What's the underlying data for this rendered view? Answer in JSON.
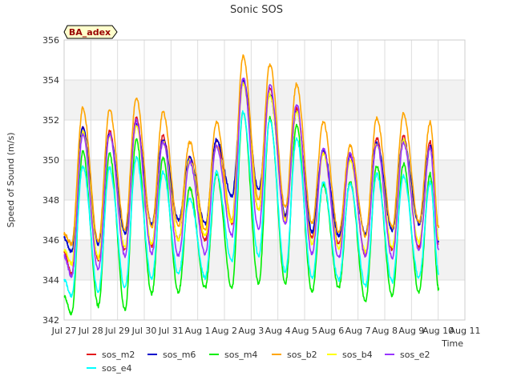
{
  "chart_data": {
    "type": "line",
    "title": "Sonic SOS",
    "xlabel": "Time",
    "ylabel": "Speed of Sound (m/s)",
    "ylim": [
      342,
      356
    ],
    "y_ticks": [
      342,
      344,
      346,
      348,
      350,
      352,
      354,
      356
    ],
    "xlim": [
      0,
      15
    ],
    "x_ticks": [
      {
        "pos": 0,
        "label": "Jul 27"
      },
      {
        "pos": 1,
        "label": "Jul 28"
      },
      {
        "pos": 2,
        "label": "Jul 29"
      },
      {
        "pos": 3,
        "label": "Jul 30"
      },
      {
        "pos": 4,
        "label": "Jul 31"
      },
      {
        "pos": 5,
        "label": "Aug 1"
      },
      {
        "pos": 6,
        "label": "Aug 2"
      },
      {
        "pos": 7,
        "label": "Aug 3"
      },
      {
        "pos": 8,
        "label": "Aug 4"
      },
      {
        "pos": 9,
        "label": "Aug 5"
      },
      {
        "pos": 10,
        "label": "Aug 6"
      },
      {
        "pos": 11,
        "label": "Aug 7"
      },
      {
        "pos": 12,
        "label": "Aug 8"
      },
      {
        "pos": 13,
        "label": "Aug 9"
      },
      {
        "pos": 14,
        "label": "Aug 10"
      },
      {
        "pos": 15,
        "label": "Aug 11"
      }
    ],
    "grid": true,
    "legend_position": "bottom",
    "annotation": {
      "text": "BA_adex",
      "border_color": "#000000",
      "fill_color": "#ffffcc",
      "text_color": "#990000"
    },
    "day_maxima_minima_note": "values per series listed as daily [max, min] pairs",
    "series": [
      {
        "name": "sos_m2",
        "color": "#e41a1c",
        "first": 345.4,
        "daily_max": [
          351.7,
          351.5,
          352.1,
          351.2,
          350.2,
          351.0,
          354.0,
          353.6,
          352.6,
          350.5,
          350.2,
          351.1,
          351.2,
          350.9
        ],
        "daily_min": [
          344.3,
          345.0,
          345.5,
          345.7,
          346.0,
          346.0,
          346.8,
          347.5,
          347.2,
          346.1,
          345.8,
          345.2,
          345.5,
          345.6
        ],
        "last": 345.8
      },
      {
        "name": "sos_m6",
        "color": "#0000cc",
        "first": 346.1,
        "daily_max": [
          351.6,
          351.3,
          351.8,
          351.0,
          350.1,
          351.0,
          354.0,
          353.3,
          352.4,
          350.5,
          350.2,
          350.9,
          351.0,
          350.7
        ],
        "daily_min": [
          345.4,
          345.8,
          346.3,
          346.8,
          347.0,
          346.8,
          348.2,
          348.5,
          347.2,
          346.4,
          346.2,
          346.3,
          346.5,
          346.8
        ],
        "last": 345.9
      },
      {
        "name": "sos_m4",
        "color": "#00ee00",
        "first": 343.2,
        "daily_max": [
          350.4,
          350.3,
          351.0,
          350.1,
          348.6,
          349.3,
          352.4,
          352.1,
          351.7,
          348.8,
          348.9,
          349.7,
          349.8,
          349.3
        ],
        "daily_min": [
          342.3,
          342.7,
          342.5,
          343.3,
          343.4,
          343.6,
          343.6,
          343.8,
          343.8,
          343.4,
          343.6,
          342.9,
          343.2,
          343.4
        ],
        "last": 343.5
      },
      {
        "name": "sos_b2",
        "color": "#ffa500",
        "first": 346.3,
        "daily_max": [
          352.6,
          352.5,
          353.1,
          352.4,
          350.9,
          351.9,
          355.2,
          354.8,
          353.8,
          351.9,
          350.7,
          352.1,
          352.3,
          351.9
        ],
        "daily_min": [
          345.8,
          345.9,
          346.5,
          346.6,
          346.7,
          346.5,
          347.0,
          348.0,
          347.6,
          346.8,
          346.4,
          346.2,
          346.6,
          346.9
        ],
        "last": 346.6
      },
      {
        "name": "sos_b4",
        "color": "#ffff00",
        "first": 345.5,
        "daily_max": [
          351.4,
          351.2,
          351.7,
          350.9,
          350.0,
          350.7,
          353.8,
          353.3,
          352.4,
          350.3,
          350.0,
          350.8,
          351.0,
          350.6
        ],
        "daily_min": [
          344.8,
          345.1,
          345.6,
          345.8,
          346.0,
          346.2,
          346.9,
          347.5,
          347.0,
          345.8,
          345.6,
          345.4,
          345.6,
          345.9
        ],
        "last": 346.0
      },
      {
        "name": "sos_e2",
        "color": "#9933ff",
        "first": 345.2,
        "daily_max": [
          351.3,
          351.3,
          352.0,
          350.9,
          349.9,
          350.7,
          354.1,
          353.8,
          352.8,
          350.6,
          350.3,
          350.8,
          350.9,
          350.6
        ],
        "daily_min": [
          344.2,
          344.5,
          345.2,
          345.3,
          345.2,
          345.3,
          346.2,
          346.5,
          346.8,
          345.3,
          345.1,
          345.2,
          345.1,
          345.5
        ],
        "last": 345.5
      },
      {
        "name": "sos_e4",
        "color": "#00ffff",
        "first": 344.0,
        "daily_max": [
          349.7,
          349.6,
          350.1,
          349.4,
          348.1,
          349.4,
          352.4,
          352.0,
          351.1,
          348.9,
          348.8,
          349.3,
          349.2,
          348.9
        ],
        "daily_min": [
          343.2,
          343.4,
          343.6,
          344.1,
          344.3,
          344.1,
          344.9,
          345.2,
          344.4,
          344.1,
          344.0,
          343.7,
          343.9,
          344.1
        ],
        "last": 344.3
      }
    ]
  }
}
